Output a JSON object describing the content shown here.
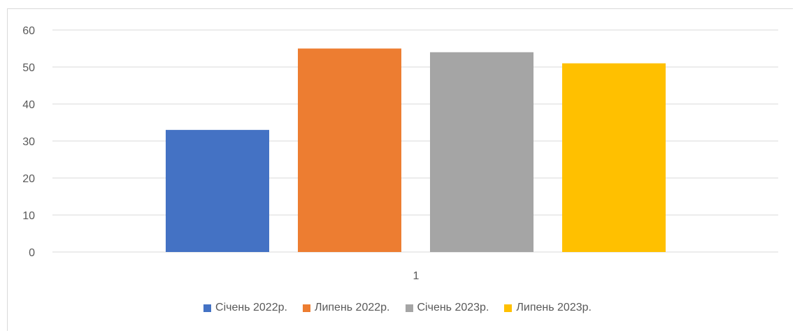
{
  "chart_data": {
    "type": "bar",
    "categories": [
      "1"
    ],
    "series": [
      {
        "name": "Січень 2022р.",
        "values": [
          33
        ],
        "color": "#4472C4"
      },
      {
        "name": "Липень 2022р.",
        "values": [
          55
        ],
        "color": "#ED7D31"
      },
      {
        "name": "Січень 2023р.",
        "values": [
          54
        ],
        "color": "#A5A5A5"
      },
      {
        "name": "Липень 2023р.",
        "values": [
          51
        ],
        "color": "#FFC000"
      }
    ],
    "y_ticks": [
      "0",
      "10",
      "20",
      "30",
      "40",
      "50",
      "60"
    ],
    "ylim": [
      0,
      60
    ],
    "grid": true,
    "legend_position": "bottom"
  }
}
